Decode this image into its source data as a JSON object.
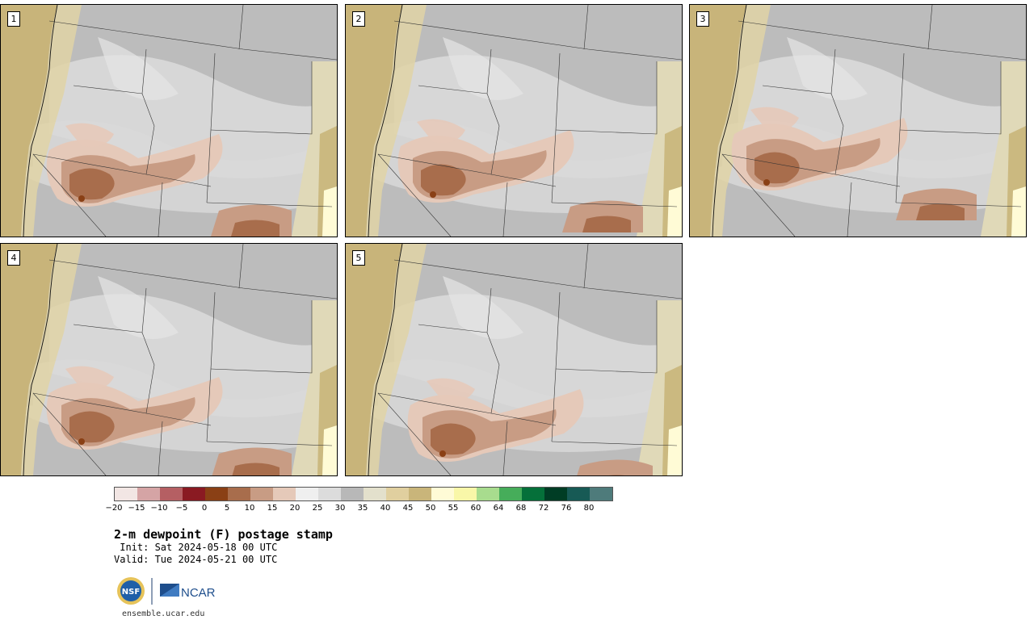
{
  "panels": [
    {
      "label": "1"
    },
    {
      "label": "2"
    },
    {
      "label": "3"
    },
    {
      "label": "4"
    },
    {
      "label": "5"
    }
  ],
  "colorbar": {
    "colors": [
      "#f2e6e4",
      "#d5a4a5",
      "#b55f63",
      "#8a1a22",
      "#8a4015",
      "#a86d4c",
      "#c89c84",
      "#e5c9b9",
      "#efefef",
      "#dcdcdc",
      "#b8b8b8",
      "#e3e0cc",
      "#e0cf9f",
      "#c9b57a",
      "#fffbd6",
      "#f9f7a8",
      "#a8dc8e",
      "#46ad5a",
      "#05703a",
      "#003d25",
      "#175a55",
      "#4e7b7b"
    ],
    "tick_labels": [
      "−20",
      "−15",
      "−10",
      "−5",
      "0",
      "5",
      "10",
      "15",
      "20",
      "25",
      "30",
      "35",
      "40",
      "45",
      "50",
      "55",
      "60",
      "64",
      "68",
      "72",
      "76",
      "80"
    ]
  },
  "title": "2-m dewpoint (F) postage stamp",
  "init_line": " Init: Sat 2024-05-18 00 UTC",
  "valid_line": "Valid: Tue 2024-05-21 00 UTC",
  "logos": {
    "left": "NSF",
    "right": "NCAR"
  },
  "url": "ensemble.ucar.edu"
}
